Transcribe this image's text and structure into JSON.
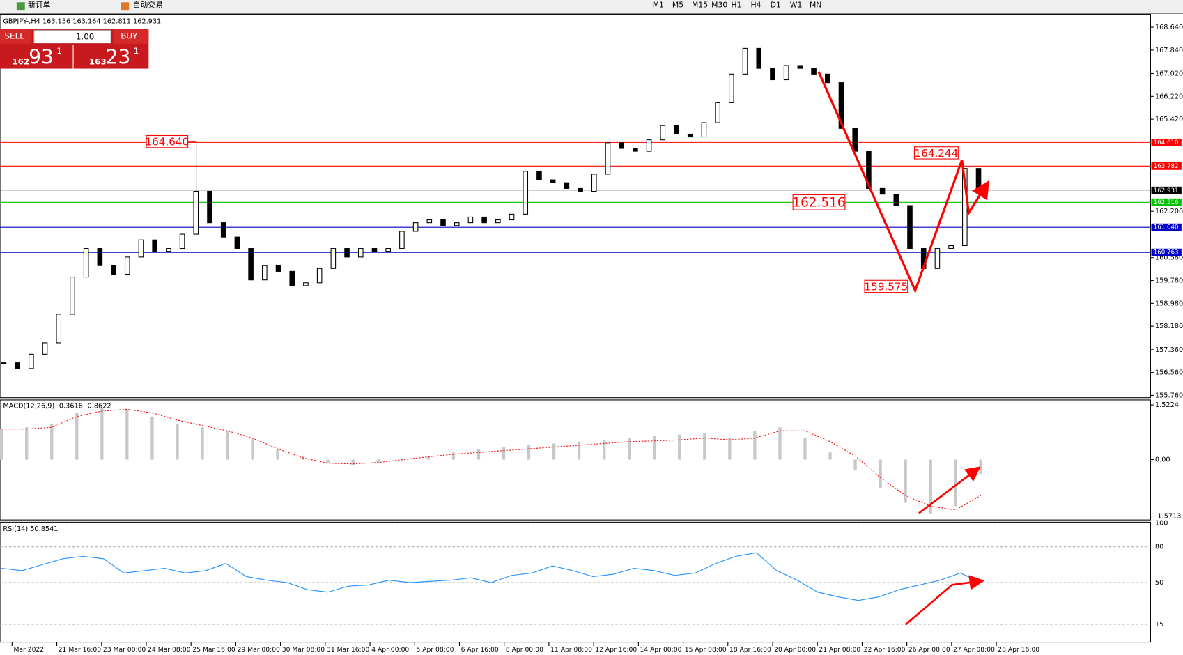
{
  "toolbar": {
    "new_order": "新订单",
    "auto_trading": "自动交易",
    "timeframes": [
      "M1",
      "M5",
      "M15",
      "M30",
      "H1",
      "H4",
      "D1",
      "W1",
      "MN"
    ]
  },
  "trade_panel": {
    "sell": "SELL",
    "lots": "1.00",
    "buy": "BUY",
    "bid_big": "162",
    "bid_main": "93",
    "bid_sup": "1",
    "ask_big": "163",
    "ask_main": "23",
    "ask_sup": "1"
  },
  "chart": {
    "header": "GBPJPY-,H4 163.156 163.164 162.811 162.931",
    "ylim": [
      155.68,
      169.09
    ],
    "yticks": [
      {
        "value": 168.64,
        "label": "168.640"
      },
      {
        "value": 167.84,
        "label": "167.840"
      },
      {
        "value": 167.02,
        "label": "167.020"
      },
      {
        "value": 166.22,
        "label": "166.220"
      },
      {
        "value": 165.42,
        "label": "165.420"
      },
      {
        "value": 162.2,
        "label": "162.200"
      },
      {
        "value": 160.58,
        "label": "160.580"
      },
      {
        "value": 159.78,
        "label": "159.780"
      },
      {
        "value": 158.98,
        "label": "158.980"
      },
      {
        "value": 158.18,
        "label": "158.180"
      },
      {
        "value": 157.36,
        "label": "157.360"
      },
      {
        "value": 156.56,
        "label": "156.560"
      },
      {
        "value": 155.76,
        "label": "155.760"
      }
    ],
    "levels": [
      {
        "value": 164.61,
        "label": "164.610",
        "color": "#ff0000"
      },
      {
        "value": 163.782,
        "label": "163.782",
        "color": "#ff0000"
      },
      {
        "value": 162.931,
        "label": "162.931",
        "color": "#000000"
      },
      {
        "value": 162.516,
        "label": "162.516",
        "color": "#00c000"
      },
      {
        "value": 161.64,
        "label": "161.640",
        "color": "#0000c8"
      },
      {
        "value": 160.763,
        "label": "160.763",
        "color": "#0000c8"
      }
    ],
    "annotations": [
      {
        "value": 164.64,
        "label": "164.640"
      },
      {
        "value": 164.244,
        "label": "164.244"
      },
      {
        "value": 162.516,
        "label": "162.516"
      },
      {
        "value": 159.575,
        "label": "159.575"
      }
    ],
    "closes": [
      156.9,
      156.7,
      157.2,
      157.6,
      158.6,
      159.9,
      160.9,
      160.3,
      160.0,
      160.6,
      161.2,
      160.8,
      160.9,
      161.4,
      162.9,
      161.8,
      161.3,
      160.9,
      159.8,
      160.3,
      160.1,
      159.6,
      159.7,
      160.2,
      160.9,
      160.6,
      160.9,
      160.8,
      160.9,
      161.5,
      161.8,
      161.9,
      161.7,
      161.8,
      162.0,
      161.8,
      161.9,
      162.1,
      163.6,
      163.3,
      163.2,
      163.0,
      162.9,
      163.5,
      164.6,
      164.4,
      164.3,
      164.7,
      165.2,
      164.9,
      164.8,
      165.3,
      166.0,
      167.0,
      167.9,
      167.2,
      166.8,
      167.3,
      167.2,
      167.0,
      166.7,
      165.1,
      164.3,
      163.0,
      162.8,
      162.4,
      160.9,
      160.2,
      160.9,
      161.0,
      163.7,
      162.9
    ],
    "time_labels": [
      "Mar 2022",
      "21 Mar 16:00",
      "23 Mar 00:00",
      "24 Mar 08:00",
      "25 Mar 16:00",
      "29 Mar 00:00",
      "30 Mar 08:00",
      "31 Mar 16:00",
      "4 Apr 00:00",
      "5 Apr 08:00",
      "6 Apr 16:00",
      "8 Apr 00:00",
      "11 Apr 08:00",
      "12 Apr 16:00",
      "14 Apr 00:00",
      "15 Apr 08:00",
      "18 Apr 16:00",
      "20 Apr 00:00",
      "21 Apr 08:00",
      "22 Apr 16:00",
      "26 Apr 00:00",
      "27 Apr 08:00",
      "28 Apr 16:00"
    ]
  },
  "macd": {
    "header": "MACD(12,26,9) -0.3618 -0.8622",
    "ylim": [
      -1.68,
      1.64
    ],
    "yticks": [
      1.5224,
      {
        "value": 0,
        "label": "0.00"
      },
      -1.5713
    ],
    "histogram": [
      0.85,
      0.9,
      1.0,
      1.3,
      1.45,
      1.4,
      1.2,
      1.0,
      0.9,
      0.8,
      0.6,
      0.3,
      0.1,
      -0.1,
      -0.15,
      -0.1,
      0.0,
      0.1,
      0.2,
      0.3,
      0.35,
      0.4,
      0.45,
      0.5,
      0.55,
      0.6,
      0.65,
      0.7,
      0.75,
      0.6,
      0.8,
      0.9,
      0.6,
      0.2,
      -0.3,
      -0.8,
      -1.2,
      -1.5,
      -1.3,
      -0.4
    ],
    "signal": [
      0.85,
      0.85,
      0.9,
      1.2,
      1.35,
      1.4,
      1.3,
      1.1,
      0.95,
      0.8,
      0.6,
      0.3,
      0.05,
      -0.1,
      -0.12,
      -0.08,
      0,
      0.08,
      0.15,
      0.2,
      0.25,
      0.3,
      0.35,
      0.4,
      0.45,
      0.5,
      0.52,
      0.55,
      0.6,
      0.55,
      0.6,
      0.8,
      0.8,
      0.5,
      0.1,
      -0.5,
      -1.0,
      -1.3,
      -1.4,
      -1.0
    ]
  },
  "rsi": {
    "header": "RSI(14) 50.8541",
    "ylim": [
      0,
      100
    ],
    "yticks": [
      100,
      80,
      50,
      15
    ],
    "values": [
      62,
      60,
      65,
      70,
      72,
      70,
      58,
      60,
      62,
      58,
      60,
      66,
      55,
      52,
      50,
      44,
      42,
      47,
      48,
      52,
      50,
      51,
      52,
      54,
      50,
      56,
      58,
      64,
      60,
      55,
      57,
      62,
      60,
      56,
      58,
      66,
      72,
      75,
      60,
      52,
      42,
      38,
      35,
      38,
      44,
      48,
      52,
      58,
      50
    ]
  }
}
